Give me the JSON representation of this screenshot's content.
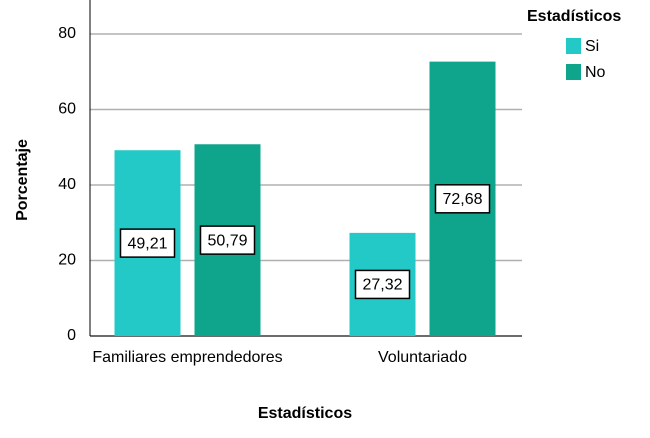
{
  "chart_data": {
    "type": "bar",
    "x_label": "Estadísticos",
    "y_label": "Porcentaje",
    "legend_title": "Estadísticos",
    "legend": "top-right",
    "categories": [
      "Familiares emprendedores",
      "Voluntariado"
    ],
    "series": [
      {
        "name": "Si",
        "color": "#22c9c6",
        "values": [
          49.21,
          27.32
        ],
        "value_labels": [
          "49,21",
          "27,32"
        ]
      },
      {
        "name": "No",
        "color": "#0fa48c",
        "values": [
          50.79,
          72.68
        ],
        "value_labels": [
          "50,79",
          "72,68"
        ]
      }
    ],
    "ylim": [
      0,
      89
    ],
    "yticks": [
      0,
      20,
      40,
      60,
      80
    ],
    "grid": true
  }
}
